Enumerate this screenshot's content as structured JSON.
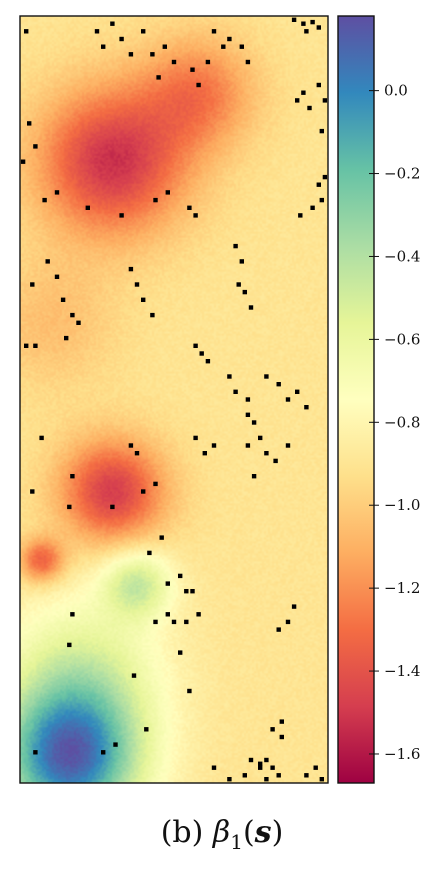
{
  "caption": {
    "prefix": "(b) ",
    "symbol": "β",
    "subscript": "1",
    "open": "(",
    "var": "s",
    "close": ")"
  },
  "chart_data": {
    "type": "heatmap",
    "title": "",
    "xlabel": "",
    "ylabel": "",
    "colorbar": {
      "colormap": "Spectral",
      "range": [
        -1.67,
        0.18
      ],
      "ticks": [
        0.0,
        -0.2,
        -0.4,
        -0.6,
        -0.8,
        -1.0,
        -1.2,
        -1.4,
        -1.6
      ],
      "tick_labels": [
        "0.0",
        "−0.2",
        "−0.4",
        "−0.6",
        "−0.8",
        "−1.0",
        "−1.2",
        "−1.4",
        "−1.6"
      ]
    },
    "field": {
      "base_value": -0.9,
      "features": [
        {
          "kind": "low",
          "x": 0.3,
          "y": 0.19,
          "amplitude": -0.62,
          "spread": 0.17
        },
        {
          "kind": "low",
          "x": 0.58,
          "y": 0.1,
          "amplitude": -0.35,
          "spread": 0.13
        },
        {
          "kind": "low",
          "x": 0.3,
          "y": 0.62,
          "amplitude": -0.58,
          "spread": 0.12
        },
        {
          "kind": "low",
          "x": 0.07,
          "y": 0.71,
          "amplitude": -0.45,
          "spread": 0.05
        },
        {
          "kind": "low",
          "x": 0.1,
          "y": 0.4,
          "amplitude": -0.15,
          "spread": 0.15
        },
        {
          "kind": "high",
          "x": 0.38,
          "y": 0.74,
          "amplitude": 0.42,
          "spread": 0.08
        },
        {
          "kind": "high",
          "x": 0.16,
          "y": 0.97,
          "amplitude": 0.95,
          "spread": 0.16
        },
        {
          "kind": "high",
          "x": 0.2,
          "y": 0.86,
          "amplitude": 0.35,
          "spread": 0.18
        }
      ]
    },
    "observed_sites": [
      [
        0.25,
        0.02
      ],
      [
        0.27,
        0.04
      ],
      [
        0.3,
        0.01
      ],
      [
        0.33,
        0.03
      ],
      [
        0.36,
        0.05
      ],
      [
        0.4,
        0.02
      ],
      [
        0.43,
        0.05
      ],
      [
        0.45,
        0.08
      ],
      [
        0.47,
        0.04
      ],
      [
        0.5,
        0.06
      ],
      [
        0.56,
        0.07
      ],
      [
        0.58,
        0.09
      ],
      [
        0.61,
        0.06
      ],
      [
        0.63,
        0.02
      ],
      [
        0.66,
        0.04
      ],
      [
        0.68,
        0.03
      ],
      [
        0.72,
        0.04
      ],
      [
        0.74,
        0.06
      ],
      [
        0.89,
        0.005
      ],
      [
        0.92,
        0.01
      ],
      [
        0.95,
        0.008
      ],
      [
        0.97,
        0.015
      ],
      [
        0.93,
        0.02
      ],
      [
        0.9,
        0.11
      ],
      [
        0.92,
        0.1
      ],
      [
        0.94,
        0.12
      ],
      [
        0.97,
        0.09
      ],
      [
        0.99,
        0.11
      ],
      [
        0.98,
        0.15
      ],
      [
        0.02,
        0.02
      ],
      [
        0.03,
        0.14
      ],
      [
        0.05,
        0.17
      ],
      [
        0.01,
        0.19
      ],
      [
        0.08,
        0.24
      ],
      [
        0.12,
        0.23
      ],
      [
        0.22,
        0.25
      ],
      [
        0.33,
        0.26
      ],
      [
        0.44,
        0.24
      ],
      [
        0.48,
        0.23
      ],
      [
        0.55,
        0.25
      ],
      [
        0.57,
        0.26
      ],
      [
        0.91,
        0.26
      ],
      [
        0.95,
        0.25
      ],
      [
        0.98,
        0.24
      ],
      [
        0.97,
        0.22
      ],
      [
        0.99,
        0.21
      ],
      [
        0.09,
        0.32
      ],
      [
        0.12,
        0.34
      ],
      [
        0.04,
        0.35
      ],
      [
        0.14,
        0.37
      ],
      [
        0.17,
        0.39
      ],
      [
        0.19,
        0.4
      ],
      [
        0.36,
        0.33
      ],
      [
        0.38,
        0.35
      ],
      [
        0.4,
        0.37
      ],
      [
        0.43,
        0.39
      ],
      [
        0.7,
        0.3
      ],
      [
        0.72,
        0.32
      ],
      [
        0.71,
        0.35
      ],
      [
        0.73,
        0.36
      ],
      [
        0.75,
        0.38
      ],
      [
        0.02,
        0.43
      ],
      [
        0.05,
        0.43
      ],
      [
        0.15,
        0.42
      ],
      [
        0.57,
        0.43
      ],
      [
        0.59,
        0.44
      ],
      [
        0.61,
        0.45
      ],
      [
        0.68,
        0.47
      ],
      [
        0.7,
        0.49
      ],
      [
        0.74,
        0.5
      ],
      [
        0.8,
        0.47
      ],
      [
        0.84,
        0.48
      ],
      [
        0.87,
        0.5
      ],
      [
        0.9,
        0.49
      ],
      [
        0.93,
        0.51
      ],
      [
        0.74,
        0.52
      ],
      [
        0.76,
        0.53
      ],
      [
        0.78,
        0.55
      ],
      [
        0.8,
        0.57
      ],
      [
        0.83,
        0.58
      ],
      [
        0.87,
        0.56
      ],
      [
        0.07,
        0.55
      ],
      [
        0.36,
        0.56
      ],
      [
        0.38,
        0.57
      ],
      [
        0.57,
        0.55
      ],
      [
        0.6,
        0.57
      ],
      [
        0.63,
        0.56
      ],
      [
        0.74,
        0.56
      ],
      [
        0.76,
        0.6
      ],
      [
        0.04,
        0.62
      ],
      [
        0.16,
        0.64
      ],
      [
        0.17,
        0.6
      ],
      [
        0.3,
        0.64
      ],
      [
        0.4,
        0.62
      ],
      [
        0.44,
        0.61
      ],
      [
        0.46,
        0.68
      ],
      [
        0.42,
        0.7
      ],
      [
        0.48,
        0.74
      ],
      [
        0.52,
        0.73
      ],
      [
        0.54,
        0.75
      ],
      [
        0.56,
        0.75
      ],
      [
        0.48,
        0.78
      ],
      [
        0.5,
        0.79
      ],
      [
        0.54,
        0.79
      ],
      [
        0.58,
        0.78
      ],
      [
        0.44,
        0.79
      ],
      [
        0.52,
        0.83
      ],
      [
        0.89,
        0.77
      ],
      [
        0.87,
        0.79
      ],
      [
        0.84,
        0.8
      ],
      [
        0.17,
        0.78
      ],
      [
        0.16,
        0.82
      ],
      [
        0.37,
        0.86
      ],
      [
        0.55,
        0.88
      ],
      [
        0.85,
        0.92
      ],
      [
        0.82,
        0.93
      ],
      [
        0.85,
        0.94
      ],
      [
        0.05,
        0.96
      ],
      [
        0.27,
        0.96
      ],
      [
        0.31,
        0.95
      ],
      [
        0.41,
        0.93
      ],
      [
        0.63,
        0.98
      ],
      [
        0.73,
        0.99
      ],
      [
        0.75,
        0.97
      ],
      [
        0.78,
        0.98
      ],
      [
        0.8,
        0.97
      ],
      [
        0.82,
        0.98
      ],
      [
        0.8,
        0.995
      ],
      [
        0.78,
        0.975
      ],
      [
        0.93,
        0.99
      ],
      [
        0.96,
        0.98
      ],
      [
        0.98,
        0.995
      ],
      [
        0.84,
        0.99
      ],
      [
        0.68,
        0.995
      ]
    ]
  }
}
